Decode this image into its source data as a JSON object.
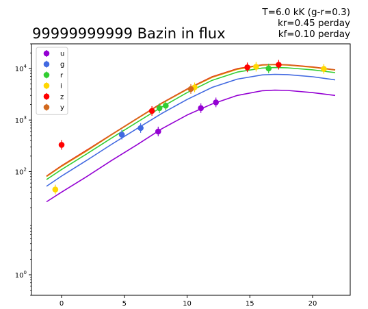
{
  "chart_data": {
    "type": "scatter",
    "title": "99999999999 Bazin in flux",
    "annotation": [
      "T=6.0 kK (g-r=0.3)",
      "kr=0.45 perday",
      "kf=0.10 perday"
    ],
    "xlabel": "",
    "ylabel": "",
    "xlim": [
      -2.4,
      23
    ],
    "ylim": [
      0.4,
      30000
    ],
    "yscale": "log",
    "grid": false,
    "legend_position": "top-left",
    "x_ticks": [
      0,
      5,
      10,
      15,
      20
    ],
    "x_tick_labels": [
      "0",
      "5",
      "10",
      "15",
      "20"
    ],
    "y_ticks": [
      1,
      100,
      1000,
      10000
    ],
    "y_tick_labels": [
      "10^0",
      "10^2",
      "10^3",
      "10^4"
    ],
    "curve_x": [
      -1.2,
      0,
      2,
      4,
      6,
      8,
      10,
      12,
      14,
      16,
      17,
      18,
      20,
      21.8
    ],
    "series": [
      {
        "name": "u",
        "color": "#9400D3",
        "points": [
          {
            "x": 7.7,
            "y": 600
          },
          {
            "x": 11.1,
            "y": 1700
          },
          {
            "x": 12.3,
            "y": 2200
          }
        ],
        "curve_y": [
          26,
          40,
          80,
          165,
          330,
          680,
          1250,
          2050,
          3000,
          3700,
          3800,
          3750,
          3400,
          3000
        ]
      },
      {
        "name": "g",
        "color": "#4169E1",
        "points": [
          {
            "x": 4.8,
            "y": 520
          },
          {
            "x": 6.3,
            "y": 700
          }
        ],
        "curve_y": [
          52,
          82,
          165,
          340,
          680,
          1350,
          2500,
          4300,
          6200,
          7500,
          7700,
          7600,
          6900,
          6000
        ]
      },
      {
        "name": "r",
        "color": "#32CD32",
        "points": [
          {
            "x": 7.8,
            "y": 1700
          },
          {
            "x": 8.3,
            "y": 1900
          },
          {
            "x": 16.5,
            "y": 10000
          }
        ],
        "curve_y": [
          70,
          110,
          220,
          450,
          900,
          1800,
          3400,
          5900,
          8500,
          10200,
          10400,
          10300,
          9400,
          8300
        ]
      },
      {
        "name": "i",
        "color": "#FFD700",
        "points": [
          {
            "x": -0.5,
            "y": 45
          },
          {
            "x": 10.6,
            "y": 4300
          },
          {
            "x": 15.5,
            "y": 10800
          },
          {
            "x": 20.9,
            "y": 9800
          }
        ],
        "curve_y": [
          80,
          126,
          250,
          520,
          1050,
          2100,
          3900,
          6700,
          9600,
          11600,
          11800,
          11600,
          10500,
          9300
        ]
      },
      {
        "name": "z",
        "color": "#FF0000",
        "points": [
          {
            "x": 0,
            "y": 330
          },
          {
            "x": 7.2,
            "y": 1500
          },
          {
            "x": 14.8,
            "y": 10500
          },
          {
            "x": 17.3,
            "y": 11800
          }
        ],
        "curve_y": [
          82,
          130,
          260,
          530,
          1070,
          2150,
          4000,
          6900,
          9900,
          11800,
          12000,
          11800,
          10700,
          9400
        ]
      },
      {
        "name": "y",
        "color": "#D2691E",
        "points": [
          {
            "x": 10.3,
            "y": 4000
          }
        ],
        "curve_y": [
          81,
          128,
          255,
          525,
          1060,
          2120,
          3950,
          6800,
          9750,
          11700,
          11900,
          11700,
          10600,
          9350
        ]
      }
    ]
  }
}
